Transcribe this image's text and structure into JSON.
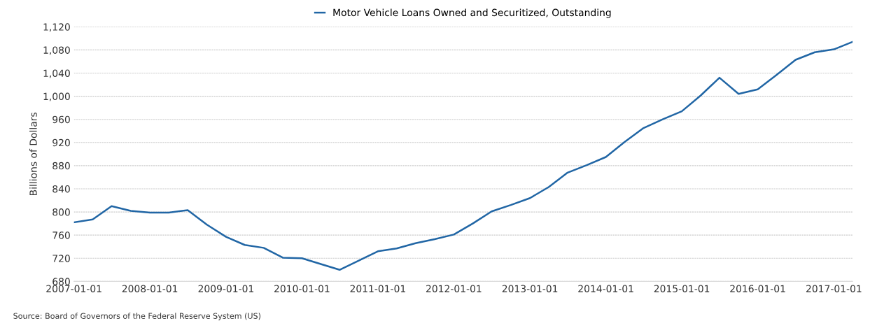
{
  "chart_data": {
    "type": "line",
    "ylabel": "Billions of Dollars",
    "x": [
      "2007-01-01",
      "2007-04-01",
      "2007-07-01",
      "2007-10-01",
      "2008-01-01",
      "2008-04-01",
      "2008-07-01",
      "2008-10-01",
      "2009-01-01",
      "2009-04-01",
      "2009-07-01",
      "2009-10-01",
      "2010-01-01",
      "2010-04-01",
      "2010-07-01",
      "2010-10-01",
      "2011-01-01",
      "2011-04-01",
      "2011-07-01",
      "2011-10-01",
      "2012-01-01",
      "2012-04-01",
      "2012-07-01",
      "2012-10-01",
      "2013-01-01",
      "2013-04-01",
      "2013-07-01",
      "2013-10-01",
      "2014-01-01",
      "2014-04-01",
      "2014-07-01",
      "2014-10-01",
      "2015-01-01",
      "2015-04-01",
      "2015-07-01",
      "2015-10-01",
      "2016-01-01",
      "2016-04-01",
      "2016-07-01",
      "2016-10-01",
      "2017-01-01",
      "2017-04-01"
    ],
    "series": [
      {
        "name": "Motor Vehicle Loans Owned and Securitized, Outstanding",
        "color": "#2166a5",
        "values": [
          782,
          787,
          810,
          802,
          799,
          799,
          803,
          778,
          757,
          743,
          738,
          721,
          720,
          710,
          700,
          716,
          732,
          737,
          746,
          753,
          761,
          780,
          801,
          812,
          824,
          843,
          868,
          881,
          895,
          921,
          945,
          960,
          974,
          1001,
          1032,
          1004,
          1012,
          1037,
          1063,
          1076,
          1081,
          1094
        ]
      }
    ],
    "xlim": [
      "2007-01-01",
      "2017-04-01"
    ],
    "xticks": [
      {
        "value": "2007-01-01",
        "label": "2007-01-01"
      },
      {
        "value": "2008-01-01",
        "label": "2008-01-01"
      },
      {
        "value": "2009-01-01",
        "label": "2009-01-01"
      },
      {
        "value": "2010-01-01",
        "label": "2010-01-01"
      },
      {
        "value": "2011-01-01",
        "label": "2011-01-01"
      },
      {
        "value": "2012-01-01",
        "label": "2012-01-01"
      },
      {
        "value": "2013-01-01",
        "label": "2013-01-01"
      },
      {
        "value": "2014-01-01",
        "label": "2014-01-01"
      },
      {
        "value": "2015-01-01",
        "label": "2015-01-01"
      },
      {
        "value": "2016-01-01",
        "label": "2016-01-01"
      },
      {
        "value": "2017-01-01",
        "label": "2017-01-01"
      }
    ],
    "ylim": [
      680,
      1120
    ],
    "yticks": [
      680,
      720,
      760,
      800,
      840,
      880,
      920,
      960,
      {
        "value": 1000,
        "label": "1,000"
      },
      {
        "value": 1040,
        "label": "1,040"
      },
      {
        "value": 1080,
        "label": "1,080"
      },
      {
        "value": 1120,
        "label": "1,120"
      }
    ],
    "grid": "y",
    "legend": "top",
    "marker": "none",
    "line_style": "solid",
    "annotations": [
      "Source: Board of Governors of the Federal Reserve System (US)"
    ]
  }
}
